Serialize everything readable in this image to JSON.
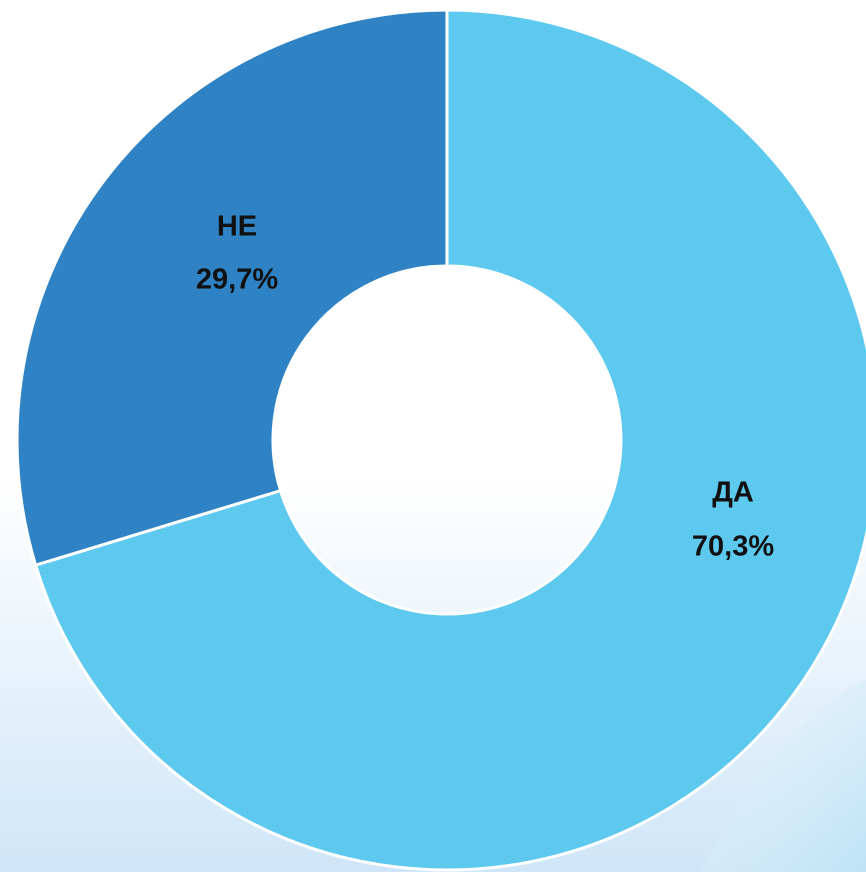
{
  "chart_data": {
    "type": "donut",
    "categories": [
      "ДА",
      "НЕ"
    ],
    "values": [
      70.3,
      29.7
    ],
    "value_labels": [
      "70,3%",
      "29,7%"
    ],
    "colors": [
      "#5ec9ef",
      "#2f83c4"
    ]
  }
}
